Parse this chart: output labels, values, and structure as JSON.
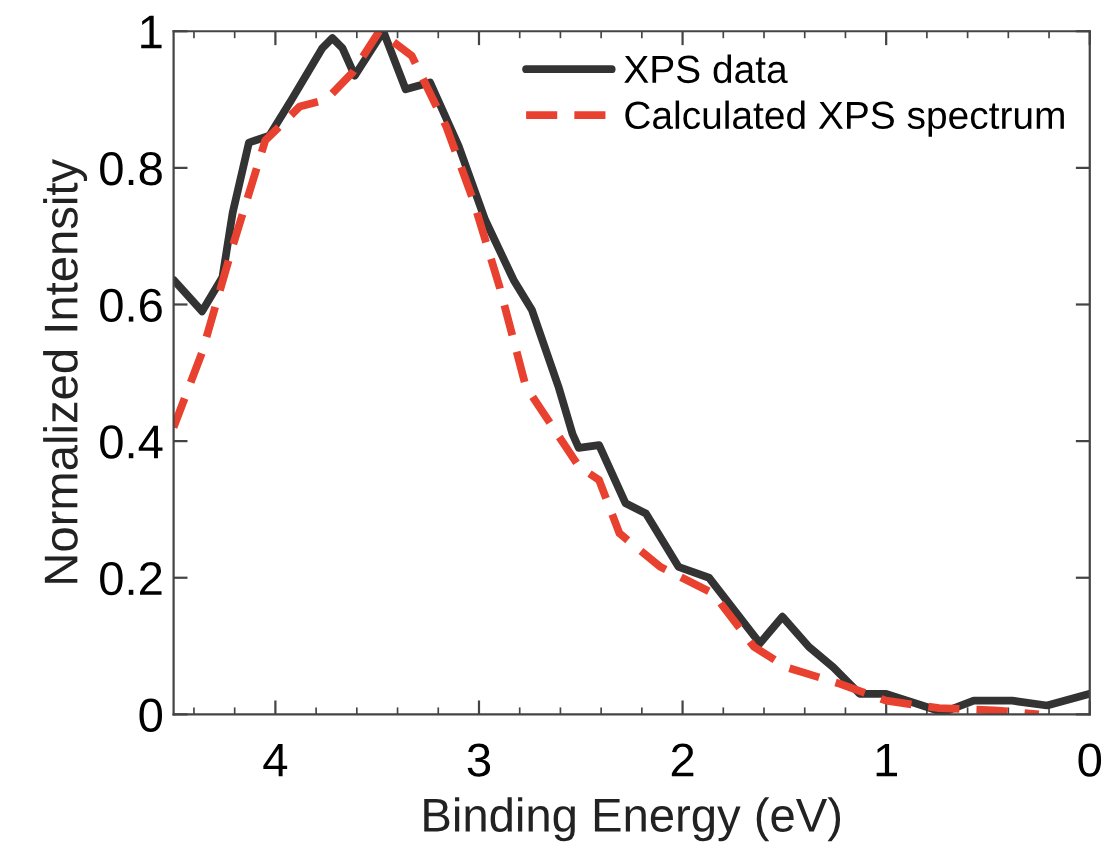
{
  "chart_data": {
    "type": "line",
    "xlabel": "Binding Energy (eV)",
    "ylabel": "Normalized Intensity",
    "xlim": [
      4.5,
      0
    ],
    "xticks": [
      4,
      3,
      2,
      1,
      0
    ],
    "ylim": [
      0,
      1
    ],
    "yticks": [
      0,
      0.2,
      0.4,
      0.6,
      0.8,
      1
    ],
    "legend": "top right",
    "grid": false,
    "series": [
      {
        "name": "XPS data",
        "color": "#333333",
        "line_style": "solid",
        "x": [
          4.5,
          4.36,
          4.26,
          4.21,
          4.13,
          4.03,
          3.92,
          3.77,
          3.72,
          3.67,
          3.61,
          3.47,
          3.36,
          3.24,
          3.1,
          2.97,
          2.83,
          2.74,
          2.61,
          2.54,
          2.51,
          2.41,
          2.28,
          2.18,
          2.02,
          1.87,
          1.62,
          1.51,
          1.38,
          1.26,
          1.13,
          1.0,
          0.72,
          0.57,
          0.38,
          0.21,
          0
        ],
        "values": [
          0.636,
          0.59,
          0.64,
          0.734,
          0.837,
          0.847,
          0.9,
          0.975,
          0.99,
          0.975,
          0.935,
          1.0,
          0.915,
          0.925,
          0.832,
          0.724,
          0.636,
          0.592,
          0.48,
          0.41,
          0.39,
          0.394,
          0.309,
          0.294,
          0.216,
          0.2,
          0.104,
          0.143,
          0.099,
          0.069,
          0.03,
          0.03,
          0.003,
          0.02,
          0.02,
          0.013,
          0.03
        ]
      },
      {
        "name": "Calculated XPS spectrum",
        "color": "#e8412f",
        "line_style": "dashed",
        "x": [
          4.5,
          4.36,
          4.21,
          4.05,
          3.88,
          3.75,
          3.62,
          3.49,
          3.33,
          3.16,
          3.03,
          2.9,
          2.77,
          2.57,
          2.51,
          2.41,
          2.31,
          2.11,
          1.85,
          1.65,
          1.49,
          1.23,
          1.0,
          0.74,
          0.47,
          0.25
        ],
        "values": [
          0.42,
          0.53,
          0.685,
          0.84,
          0.89,
          0.9,
          0.94,
          1.0,
          0.964,
          0.86,
          0.754,
          0.627,
          0.48,
          0.39,
          0.363,
          0.343,
          0.265,
          0.216,
          0.177,
          0.099,
          0.069,
          0.045,
          0.02,
          0.009,
          0.006,
          0.0
        ]
      }
    ]
  }
}
